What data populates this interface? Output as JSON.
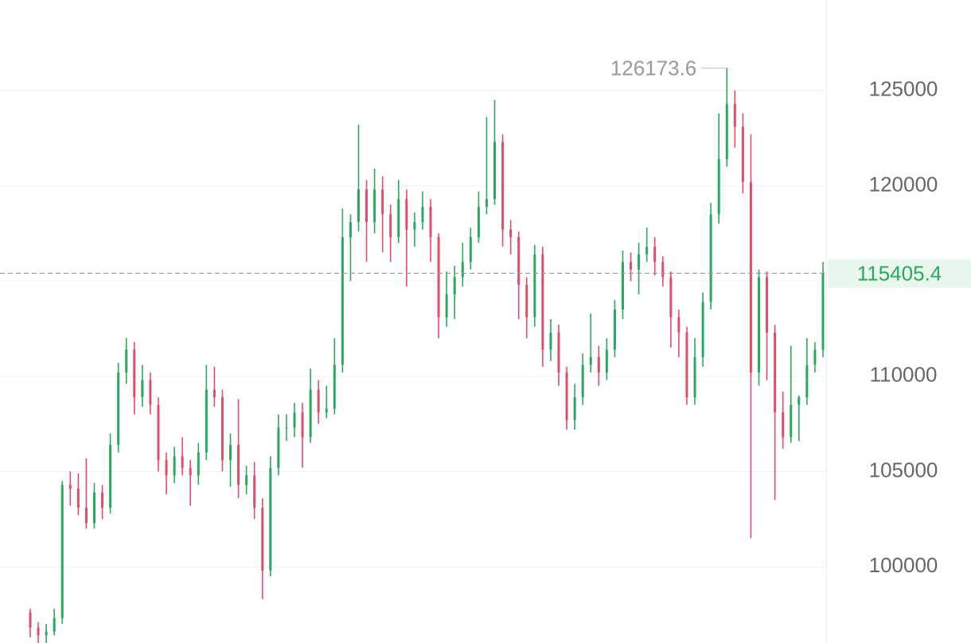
{
  "chart_data": {
    "type": "candlestick",
    "ylim": [
      96000,
      129750
    ],
    "yticks": [
      100000,
      105000,
      110000,
      115000,
      120000,
      125000
    ],
    "grid": true,
    "up_color": "#2aa95e",
    "down_color": "#de4e69",
    "candles": [
      [
        97600,
        97800,
        96300,
        96800
      ],
      [
        96800,
        97100,
        96000,
        96400
      ],
      [
        96400,
        97000,
        96000,
        96600
      ],
      [
        96600,
        97800,
        96400,
        97300
      ],
      [
        97300,
        104500,
        97000,
        104300
      ],
      [
        104300,
        105000,
        103200,
        104100
      ],
      [
        104100,
        104900,
        102700,
        103100
      ],
      [
        103100,
        105700,
        102000,
        102300
      ],
      [
        102300,
        104400,
        102000,
        103900
      ],
      [
        103900,
        104300,
        102500,
        103100
      ],
      [
        103100,
        107000,
        102800,
        106400
      ],
      [
        106400,
        110700,
        106000,
        110200
      ],
      [
        110200,
        112000,
        109600,
        111400
      ],
      [
        111400,
        111800,
        108000,
        108900
      ],
      [
        108900,
        110600,
        108400,
        109800
      ],
      [
        109800,
        110200,
        108000,
        108500
      ],
      [
        108500,
        108900,
        105000,
        105600
      ],
      [
        105600,
        106000,
        103800,
        104800
      ],
      [
        104800,
        106300,
        104400,
        105800
      ],
      [
        105800,
        106800,
        104800,
        105200
      ],
      [
        105200,
        105600,
        103200,
        104800
      ],
      [
        104800,
        106500,
        104300,
        106000
      ],
      [
        106000,
        110600,
        105600,
        109300
      ],
      [
        109300,
        110500,
        108400,
        108900
      ],
      [
        108900,
        109300,
        105000,
        105600
      ],
      [
        105600,
        107000,
        104200,
        106400
      ],
      [
        106400,
        108800,
        103600,
        104300
      ],
      [
        104300,
        105300,
        103800,
        104800
      ],
      [
        104800,
        105500,
        102500,
        103100
      ],
      [
        103100,
        103600,
        98300,
        99800
      ],
      [
        99800,
        105800,
        99500,
        105200
      ],
      [
        105200,
        108000,
        104800,
        107300
      ],
      [
        107300,
        108000,
        106600,
        107300
      ],
      [
        107300,
        108600,
        106800,
        108100
      ],
      [
        108100,
        108600,
        105200,
        106800
      ],
      [
        106800,
        110400,
        106500,
        109300
      ],
      [
        109300,
        109800,
        107500,
        108100
      ],
      [
        108100,
        109500,
        107800,
        108300
      ],
      [
        108300,
        112000,
        108000,
        110600
      ],
      [
        110600,
        118800,
        110200,
        117300
      ],
      [
        117300,
        118500,
        115000,
        118100
      ],
      [
        118100,
        123200,
        117600,
        119800
      ],
      [
        119800,
        120300,
        116000,
        118100
      ],
      [
        118100,
        120900,
        117500,
        119800
      ],
      [
        119800,
        120500,
        116500,
        118500
      ],
      [
        118500,
        119000,
        116000,
        117300
      ],
      [
        117300,
        120300,
        117000,
        119300
      ],
      [
        119300,
        119800,
        114700,
        117700
      ],
      [
        117700,
        118600,
        116800,
        118100
      ],
      [
        118100,
        119700,
        117700,
        118900
      ],
      [
        118900,
        119300,
        116000,
        117300
      ],
      [
        117300,
        117500,
        112000,
        113100
      ],
      [
        113100,
        115500,
        112600,
        114300
      ],
      [
        114300,
        115800,
        113000,
        115200
      ],
      [
        115200,
        117000,
        114700,
        116000
      ],
      [
        116000,
        117800,
        115600,
        117300
      ],
      [
        117300,
        119700,
        117000,
        118900
      ],
      [
        118900,
        123600,
        118500,
        119300
      ],
      [
        119300,
        124500,
        119000,
        122300
      ],
      [
        122300,
        122700,
        116800,
        117700
      ],
      [
        117700,
        118200,
        116400,
        117300
      ],
      [
        117300,
        117600,
        113000,
        114800
      ],
      [
        114800,
        115200,
        112000,
        113100
      ],
      [
        113100,
        116900,
        112600,
        116400
      ],
      [
        116400,
        116800,
        110500,
        111400
      ],
      [
        111400,
        113000,
        110800,
        112300
      ],
      [
        112300,
        112700,
        109500,
        110200
      ],
      [
        110200,
        110500,
        107200,
        107700
      ],
      [
        107700,
        109600,
        107200,
        108900
      ],
      [
        108900,
        111200,
        108500,
        110600
      ],
      [
        110600,
        113300,
        110200,
        111000
      ],
      [
        111000,
        111600,
        109500,
        110200
      ],
      [
        110200,
        112000,
        109800,
        111400
      ],
      [
        111400,
        114000,
        111000,
        113500
      ],
      [
        113500,
        116600,
        113000,
        116000
      ],
      [
        116000,
        116500,
        115000,
        115600
      ],
      [
        115600,
        117000,
        114300,
        116400
      ],
      [
        116400,
        117800,
        116000,
        116800
      ],
      [
        116800,
        117300,
        115300,
        116000
      ],
      [
        116000,
        116300,
        114700,
        115200
      ],
      [
        115200,
        115500,
        111500,
        113100
      ],
      [
        113100,
        113500,
        111000,
        112300
      ],
      [
        112300,
        112600,
        108500,
        108900
      ],
      [
        108900,
        112000,
        108500,
        111000
      ],
      [
        111000,
        114400,
        110500,
        113900
      ],
      [
        113900,
        119100,
        113500,
        118500
      ],
      [
        118500,
        123800,
        118000,
        121400
      ],
      [
        121400,
        126173.6,
        121000,
        124300
      ],
      [
        124300,
        125000,
        122000,
        123100
      ],
      [
        123100,
        123800,
        119600,
        120200
      ],
      [
        120200,
        122700,
        101500,
        110200
      ],
      [
        110200,
        115600,
        109500,
        115200
      ],
      [
        115200,
        115500,
        109800,
        112300
      ],
      [
        112300,
        112700,
        103500,
        108100
      ],
      [
        108100,
        109200,
        106200,
        106800
      ],
      [
        106800,
        111600,
        106500,
        108500
      ],
      [
        108500,
        109000,
        106600,
        108900
      ],
      [
        108900,
        112000,
        108500,
        110600
      ],
      [
        110600,
        111800,
        110200,
        111400
      ],
      [
        111400,
        116000,
        111000,
        115405.4
      ]
    ]
  }
}
